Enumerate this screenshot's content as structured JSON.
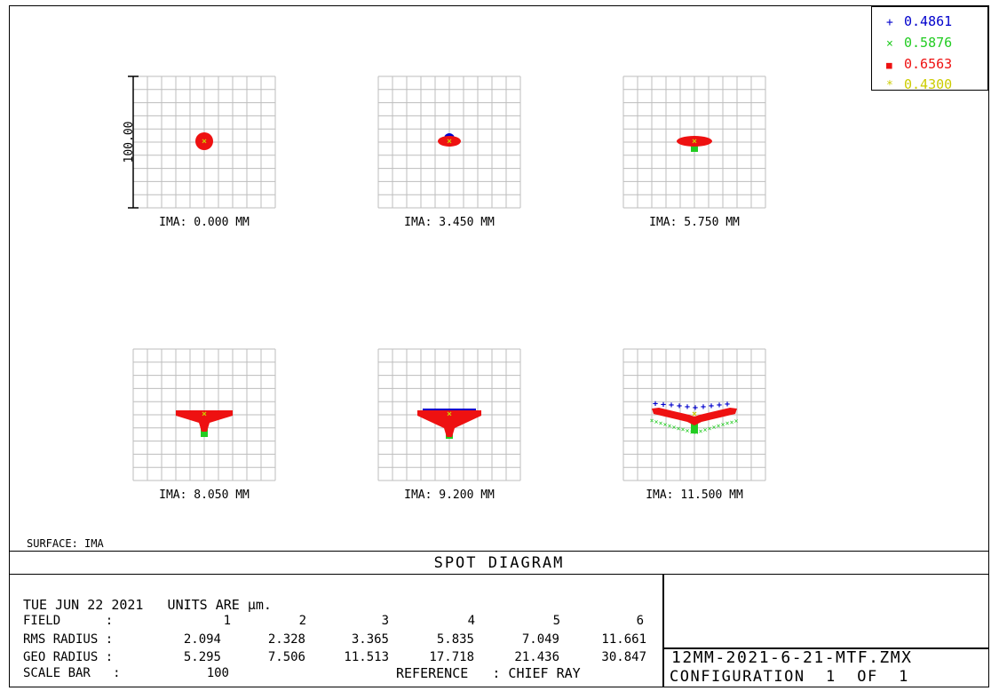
{
  "legend": [
    {
      "symbol": "+",
      "value": "0.4861",
      "color": "#0000cc"
    },
    {
      "symbol": "×",
      "value": "0.5876",
      "color": "#22cc22"
    },
    {
      "symbol": "■",
      "value": "0.6563",
      "color": "#ee1111"
    },
    {
      "symbol": "*",
      "value": "0.4300",
      "color": "#cccc00"
    }
  ],
  "chart_data": {
    "type": "scatter",
    "title": "SPOT DIAGRAM",
    "scale_label": "100.00",
    "units": "µm",
    "fields": [
      {
        "label": "IMA: 0.000 MM",
        "shape": "round",
        "spread": 10,
        "vshape": 0,
        "green_tail": 0,
        "blue_arc": 0
      },
      {
        "label": "IMA: 3.450 MM",
        "shape": "round-flat",
        "spread": 13,
        "vshape": 2,
        "green_tail": 5,
        "blue_arc": 4
      },
      {
        "label": "IMA: 5.750 MM",
        "shape": "flat",
        "spread": 20,
        "vshape": 3,
        "green_tail": 12,
        "blue_arc": 2
      },
      {
        "label": "IMA: 8.050 MM",
        "shape": "v",
        "spread": 32,
        "vshape": 10,
        "green_tail": 26,
        "blue_arc": 1
      },
      {
        "label": "IMA: 9.200 MM",
        "shape": "v",
        "spread": 36,
        "vshape": 16,
        "green_tail": 28,
        "blue_arc": 3
      },
      {
        "label": "IMA: 11.500 MM",
        "shape": "wide-v",
        "spread": 48,
        "vshape": 14,
        "green_tail": 22,
        "blue_arc": 6
      }
    ]
  },
  "surface_label": "SURFACE: IMA",
  "title_bar": "SPOT DIAGRAM",
  "info": {
    "date_line": "TUE JUN 22 2021   UNITS ARE µm.",
    "field_label": "FIELD      :",
    "rms_label": "RMS RADIUS :",
    "geo_label": "GEO RADIUS :",
    "scale_label": "SCALE BAR   :",
    "fields": [
      "1",
      "2",
      "3",
      "4",
      "5",
      "6"
    ],
    "rms": [
      "2.094",
      "2.328",
      "3.365",
      "5.835",
      "7.049",
      "11.661"
    ],
    "geo": [
      "5.295",
      "7.506",
      "11.513",
      "17.718",
      "21.436",
      "30.847"
    ],
    "scale_value": "100",
    "reference": "REFERENCE   : CHIEF RAY"
  },
  "file_name": "12MM-2021-6-21-MTF.ZMX",
  "configuration": "CONFIGURATION  1  OF  1"
}
